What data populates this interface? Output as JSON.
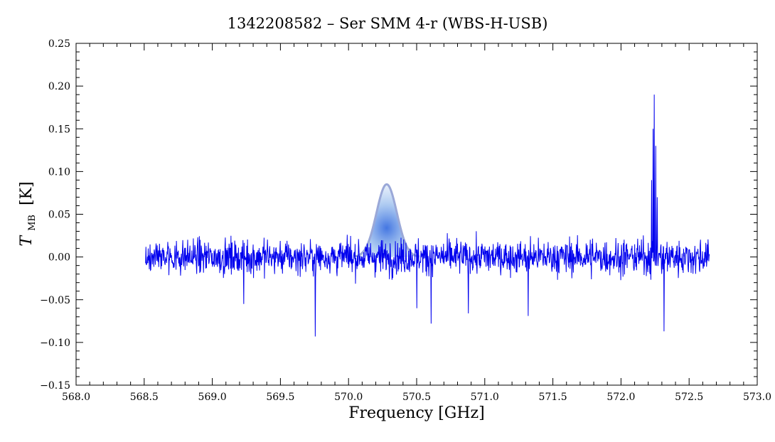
{
  "chart_data": {
    "type": "line",
    "title": "1342208582 – Ser SMM 4-r (WBS-H-USB)",
    "xlabel": "Frequency [GHz]",
    "ylabel_main": "T",
    "ylabel_sub": "MB",
    "ylabel_unit": "[K]",
    "xlim": [
      568.0,
      573.0
    ],
    "ylim": [
      -0.15,
      0.25
    ],
    "x_ticks": [
      568.0,
      568.5,
      569.0,
      569.5,
      570.0,
      570.5,
      571.0,
      571.5,
      572.0,
      572.5,
      573.0
    ],
    "x_tick_labels": [
      "568.0",
      "568.5",
      "569.0",
      "569.5",
      "570.0",
      "570.5",
      "571.0",
      "571.5",
      "572.0",
      "572.5",
      "573.0"
    ],
    "y_ticks": [
      -0.15,
      -0.1,
      -0.05,
      0.0,
      0.05,
      0.1,
      0.15,
      0.2,
      0.25
    ],
    "y_tick_labels": [
      "−0.15",
      "−0.10",
      "−0.05",
      "0.00",
      "0.05",
      "0.10",
      "0.15",
      "0.20",
      "0.25"
    ],
    "grid": false,
    "series": [
      {
        "color": "#0000ee",
        "x_start": 568.51,
        "x_end": 572.65,
        "noise_rms": 0.015,
        "points": 1500,
        "features": [
          {
            "x": 572.245,
            "y": 0.19
          },
          {
            "x": 572.235,
            "y": 0.15
          },
          {
            "x": 572.255,
            "y": 0.13
          },
          {
            "x": 572.225,
            "y": 0.09
          },
          {
            "x": 572.265,
            "y": 0.07
          },
          {
            "x": 569.755,
            "y": -0.093
          },
          {
            "x": 572.315,
            "y": -0.087
          },
          {
            "x": 570.605,
            "y": -0.078
          },
          {
            "x": 571.32,
            "y": -0.069
          },
          {
            "x": 570.88,
            "y": -0.066
          },
          {
            "x": 569.23,
            "y": -0.055
          },
          {
            "x": 570.5,
            "y": -0.06
          }
        ]
      }
    ],
    "line_model": {
      "color": "#9aa8d8",
      "fill": "#a8c8ee",
      "center": 570.28,
      "peak": 0.085,
      "sigma": 0.075
    }
  }
}
